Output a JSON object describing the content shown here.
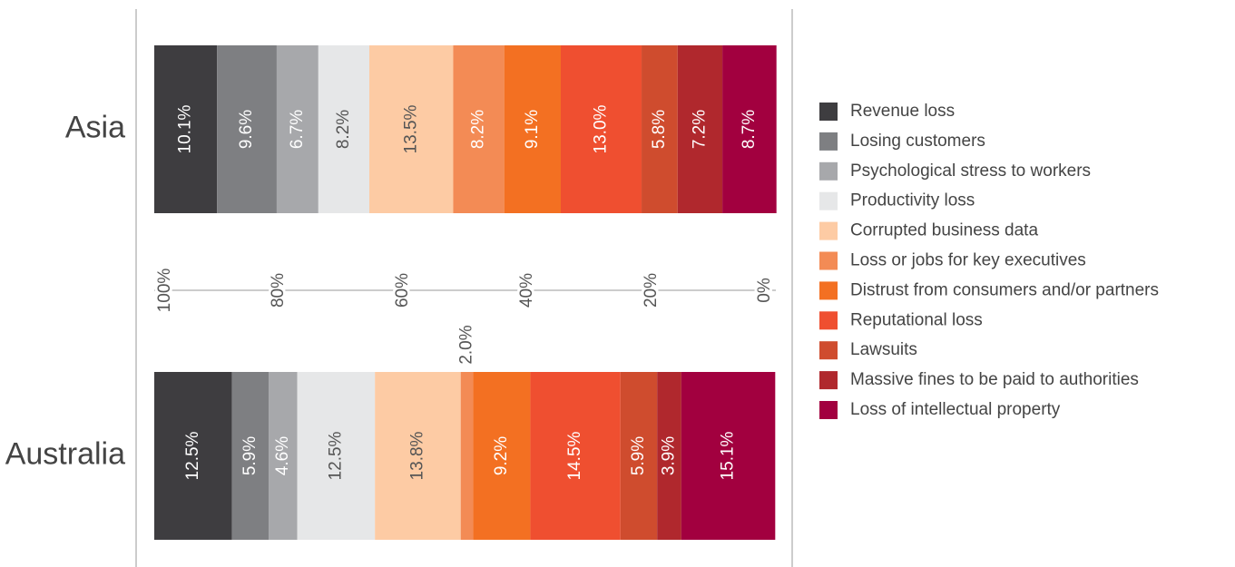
{
  "chart_data": {
    "type": "stacked_bar_horizontal",
    "categories": [
      "Asia",
      "Australia"
    ],
    "series": [
      {
        "name": "Revenue loss",
        "color": "#3e3d40",
        "values": [
          10.1,
          12.5
        ],
        "value_labels": [
          "10.1%",
          "12.5%"
        ]
      },
      {
        "name": "Losing customers",
        "color": "#7e7f82",
        "values": [
          9.6,
          5.9
        ],
        "value_labels": [
          "9.6%",
          "5.9%"
        ]
      },
      {
        "name": "Psychological stress to workers",
        "color": "#a7a8ab",
        "values": [
          6.7,
          4.6
        ],
        "value_labels": [
          "6.7%",
          "4.6%"
        ]
      },
      {
        "name": "Productivity loss",
        "color": "#e6e7e8",
        "values": [
          8.2,
          12.5
        ],
        "value_labels": [
          "8.2%",
          "12.5%"
        ]
      },
      {
        "name": "Corrupted business data",
        "color": "#fdcba4",
        "values": [
          13.5,
          13.8
        ],
        "value_labels": [
          "13.5%",
          "13.8%"
        ]
      },
      {
        "name": "Loss or jobs for key executives",
        "color": "#f38b55",
        "values": [
          8.2,
          2.0
        ],
        "value_labels": [
          "8.2%",
          "2.0%"
        ]
      },
      {
        "name": "Distrust from consumers and/or partners",
        "color": "#f37022",
        "values": [
          9.1,
          9.2
        ],
        "value_labels": [
          "9.1%",
          "9.2%"
        ]
      },
      {
        "name": "Reputational loss",
        "color": "#ef4f30",
        "values": [
          13.0,
          14.5
        ],
        "value_labels": [
          "13.0%",
          "14.5%"
        ]
      },
      {
        "name": "Lawsuits",
        "color": "#cf4c2e",
        "values": [
          5.8,
          5.9
        ],
        "value_labels": [
          "5.8%",
          "5.9%"
        ]
      },
      {
        "name": "Massive fines to be paid to authorities",
        "color": "#b0282d",
        "values": [
          7.2,
          3.9
        ],
        "value_labels": [
          "7.2%",
          "3.9%"
        ]
      },
      {
        "name": "Loss of intellectual property",
        "color": "#a2003f",
        "values": [
          8.7,
          15.1
        ],
        "value_labels": [
          "8.7%",
          "15.1%"
        ]
      }
    ],
    "xlim": [
      100,
      0
    ],
    "xticks": [
      {
        "value": 100,
        "label": "100%"
      },
      {
        "value": 80,
        "label": "80%"
      },
      {
        "value": 60,
        "label": "60%"
      },
      {
        "value": 40,
        "label": "40%"
      },
      {
        "value": 20,
        "label": "20%"
      },
      {
        "value": 0,
        "label": "0%"
      }
    ],
    "legend": "right"
  }
}
